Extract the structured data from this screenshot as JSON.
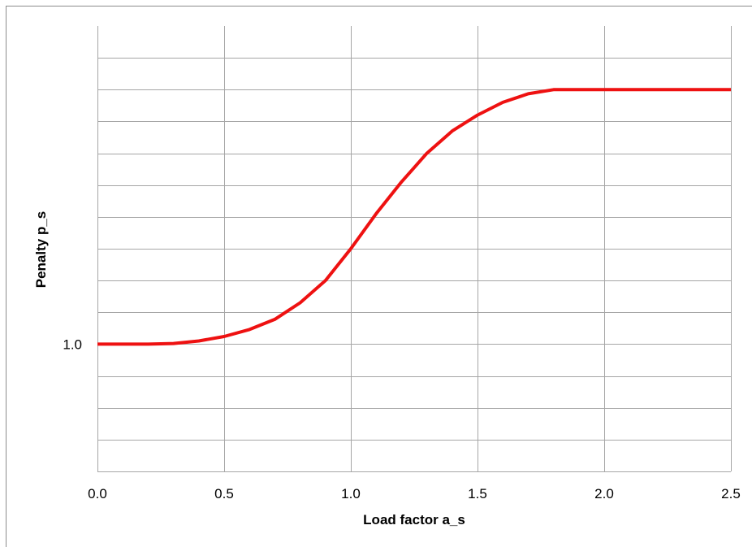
{
  "chart_data": {
    "type": "line",
    "title": "",
    "xlabel": "Load factor a_s",
    "ylabel": "Penalty p_s",
    "xlim": [
      0.0,
      2.5
    ],
    "x_ticks": [
      "0.0",
      "0.5",
      "1.0",
      "1.5",
      "2.0",
      "2.5"
    ],
    "y_tick_labels": [
      {
        "value": 1.0,
        "label": "1.0"
      }
    ],
    "ylim": [
      0.6,
      2.0
    ],
    "grid": true,
    "series": [
      {
        "color": "#ee1111",
        "x": [
          0.0,
          0.1,
          0.2,
          0.3,
          0.4,
          0.5,
          0.6,
          0.7,
          0.8,
          0.9,
          1.0,
          1.1,
          1.2,
          1.3,
          1.4,
          1.5,
          1.6,
          1.7,
          1.8,
          1.9,
          2.0,
          2.1,
          2.2,
          2.3,
          2.4,
          2.5
        ],
        "y": [
          1.0,
          1.0,
          1.0,
          1.002,
          1.01,
          1.024,
          1.046,
          1.078,
          1.13,
          1.2,
          1.3,
          1.41,
          1.51,
          1.6,
          1.67,
          1.72,
          1.76,
          1.787,
          1.804,
          1.813,
          1.8,
          1.8,
          1.8,
          1.8,
          1.8,
          1.8
        ]
      }
    ],
    "colors": {
      "grid": "#a6a6a6",
      "frame": "#8c8c8c"
    }
  }
}
